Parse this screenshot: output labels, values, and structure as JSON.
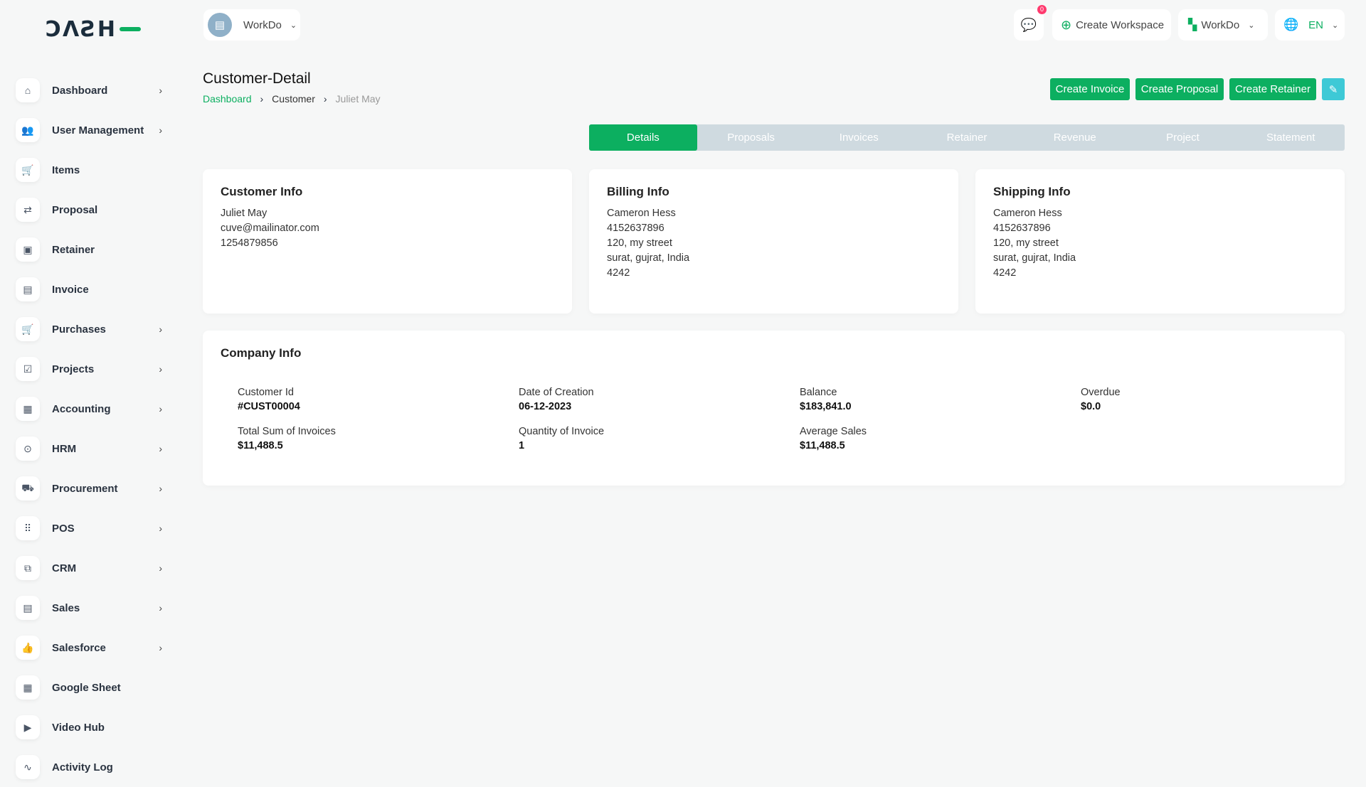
{
  "logo": "DASH",
  "header": {
    "workspace": "WorkDo",
    "notification_count": "0",
    "create_workspace": "Create Workspace",
    "workspace_switch": "WorkDo",
    "language": "EN"
  },
  "sidebar": {
    "items": [
      {
        "label": "Dashboard",
        "icon": "home-icon",
        "glyph": "⌂",
        "chevron": true
      },
      {
        "label": "User Management",
        "icon": "users-icon",
        "glyph": "👥",
        "chevron": true
      },
      {
        "label": "Items",
        "icon": "cart-icon",
        "glyph": "🛒",
        "chevron": false
      },
      {
        "label": "Proposal",
        "icon": "proposal-icon",
        "glyph": "⇄",
        "chevron": false
      },
      {
        "label": "Retainer",
        "icon": "retainer-icon",
        "glyph": "▣",
        "chevron": false
      },
      {
        "label": "Invoice",
        "icon": "file-icon",
        "glyph": "▤",
        "chevron": false
      },
      {
        "label": "Purchases",
        "icon": "cart-icon",
        "glyph": "🛒",
        "chevron": true
      },
      {
        "label": "Projects",
        "icon": "checkbox-icon",
        "glyph": "☑",
        "chevron": true
      },
      {
        "label": "Accounting",
        "icon": "grid-icon",
        "glyph": "▦",
        "chevron": true
      },
      {
        "label": "HRM",
        "icon": "hrm-icon",
        "glyph": "⊙",
        "chevron": true
      },
      {
        "label": "Procurement",
        "icon": "procurement-icon",
        "glyph": "⛟",
        "chevron": true
      },
      {
        "label": "POS",
        "icon": "dots-grid-icon",
        "glyph": "⠿",
        "chevron": true
      },
      {
        "label": "CRM",
        "icon": "crm-icon",
        "glyph": "⧉",
        "chevron": true
      },
      {
        "label": "Sales",
        "icon": "document-icon",
        "glyph": "▤",
        "chevron": true
      },
      {
        "label": "Salesforce",
        "icon": "thumbs-up-icon",
        "glyph": "👍",
        "chevron": true
      },
      {
        "label": "Google Sheet",
        "icon": "table-icon",
        "glyph": "▦",
        "chevron": false
      },
      {
        "label": "Video Hub",
        "icon": "video-icon",
        "glyph": "▶",
        "chevron": false
      },
      {
        "label": "Activity Log",
        "icon": "activity-icon",
        "glyph": "∿",
        "chevron": false
      }
    ]
  },
  "page": {
    "title": "Customer-Detail",
    "breadcrumb": [
      "Dashboard",
      "Customer",
      "Juliet May"
    ],
    "actions": {
      "create_invoice": "Create Invoice",
      "create_proposal": "Create Proposal",
      "create_retainer": "Create Retainer"
    }
  },
  "tabs": [
    "Details",
    "Proposals",
    "Invoices",
    "Retainer",
    "Revenue",
    "Project",
    "Statement"
  ],
  "customer_info": {
    "title": "Customer Info",
    "lines": [
      "Juliet May",
      "cuve@mailinator.com",
      "1254879856"
    ]
  },
  "billing_info": {
    "title": "Billing Info",
    "lines": [
      "Cameron Hess",
      "4152637896",
      "120, my street",
      "surat, gujrat, India",
      "4242"
    ]
  },
  "shipping_info": {
    "title": "Shipping Info",
    "lines": [
      "Cameron Hess",
      "4152637896",
      "120, my street",
      "surat, gujrat, India",
      "4242"
    ]
  },
  "company_info": {
    "title": "Company Info",
    "fields": [
      {
        "label": "Customer Id",
        "value": "#CUST00004"
      },
      {
        "label": "Date of Creation",
        "value": "06-12-2023"
      },
      {
        "label": "Balance",
        "value": "$183,841.0"
      },
      {
        "label": "Overdue",
        "value": "$0.0"
      },
      {
        "label": "Total Sum of Invoices",
        "value": "$11,488.5"
      },
      {
        "label": "Quantity of Invoice",
        "value": "1"
      },
      {
        "label": "Average Sales",
        "value": "$11,488.5"
      }
    ]
  },
  "colors": {
    "primary": "#0caf60",
    "edit": "#3ec9d6",
    "tabs_bg": "#cfdae0",
    "badge": "#ff3a6e"
  }
}
